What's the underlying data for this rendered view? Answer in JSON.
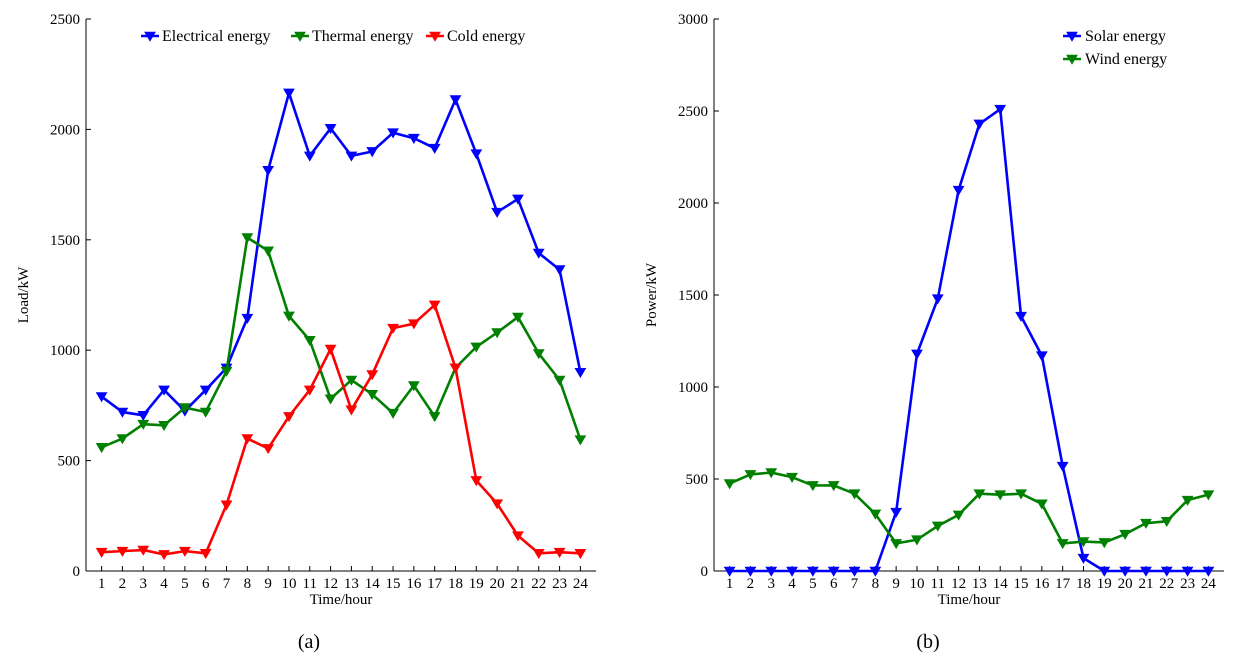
{
  "colors": {
    "electrical": "#0000ff",
    "thermal": "#008000",
    "cold": "#ff0000",
    "axis": "#000000"
  },
  "chart_data": [
    {
      "type": "line",
      "caption": "(a)",
      "xlabel": "Time/hour",
      "ylabel": "Load/kW",
      "ylim": [
        0,
        2500
      ],
      "yticks": [
        0,
        500,
        1000,
        1500,
        2000,
        2500
      ],
      "categories": [
        "1",
        "2",
        "3",
        "4",
        "5",
        "6",
        "7",
        "8",
        "9",
        "10",
        "11",
        "12",
        "13",
        "14",
        "15",
        "16",
        "17",
        "18",
        "19",
        "20",
        "21",
        "22",
        "23",
        "24"
      ],
      "legend_position": "top",
      "grid": false,
      "series": [
        {
          "name": "Electrical energy",
          "color": "#0000ff",
          "values": [
            790,
            720,
            705,
            820,
            725,
            820,
            920,
            1145,
            1815,
            2165,
            1880,
            2005,
            1880,
            1900,
            1985,
            1960,
            1915,
            2135,
            1890,
            1625,
            1685,
            1440,
            1365,
            900
          ]
        },
        {
          "name": "Thermal energy",
          "color": "#008000",
          "values": [
            560,
            600,
            665,
            660,
            740,
            720,
            905,
            1510,
            1450,
            1155,
            1045,
            780,
            865,
            800,
            715,
            840,
            700,
            920,
            1015,
            1080,
            1150,
            985,
            865,
            595
          ]
        },
        {
          "name": "Cold energy",
          "color": "#ff0000",
          "values": [
            85,
            90,
            95,
            75,
            90,
            80,
            300,
            600,
            555,
            700,
            820,
            1005,
            730,
            890,
            1100,
            1120,
            1205,
            920,
            410,
            305,
            160,
            80,
            85,
            80
          ]
        }
      ]
    },
    {
      "type": "line",
      "caption": "(b)",
      "xlabel": "Time/hour",
      "ylabel": "Power/kW",
      "ylim": [
        0,
        3000
      ],
      "yticks": [
        0,
        500,
        1000,
        1500,
        2000,
        2500,
        3000
      ],
      "categories": [
        "1",
        "2",
        "3",
        "4",
        "5",
        "6",
        "7",
        "8",
        "9",
        "10",
        "11",
        "12",
        "13",
        "14",
        "15",
        "16",
        "17",
        "18",
        "19",
        "20",
        "21",
        "22",
        "23",
        "24"
      ],
      "legend_position": "top-right",
      "grid": false,
      "series": [
        {
          "name": "Solar energy",
          "color": "#0000ff",
          "values": [
            0,
            0,
            0,
            0,
            0,
            0,
            0,
            0,
            320,
            1180,
            1480,
            2070,
            2430,
            2510,
            1385,
            1170,
            570,
            70,
            0,
            0,
            0,
            0,
            0,
            0
          ]
        },
        {
          "name": "Wind energy",
          "color": "#008000",
          "values": [
            475,
            525,
            535,
            510,
            465,
            465,
            420,
            310,
            150,
            170,
            245,
            305,
            420,
            415,
            420,
            365,
            150,
            160,
            155,
            200,
            260,
            270,
            385,
            415
          ]
        }
      ]
    }
  ]
}
